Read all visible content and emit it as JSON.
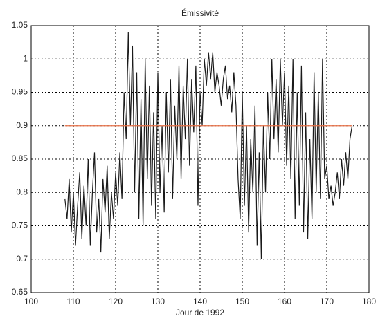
{
  "chart_data": {
    "type": "line",
    "title": "Émissivité",
    "x_label": "Jour de 1992",
    "xlim": [
      100,
      180
    ],
    "xticks": [
      100,
      110,
      120,
      130,
      140,
      150,
      160,
      170,
      180
    ],
    "ylim": [
      0.65,
      1.05
    ],
    "yticks": [
      0.65,
      0.7,
      0.75,
      0.8,
      0.85,
      0.9,
      0.95,
      1,
      1.05
    ],
    "grid": true,
    "series": [
      {
        "color": "#1a1a1a",
        "x": [
          108,
          108.5,
          109,
          109.5,
          110,
          110.5,
          111,
          111.5,
          112,
          112.5,
          113,
          113.5,
          114,
          114.5,
          115,
          115.5,
          116,
          116.5,
          117,
          117.5,
          118,
          118.5,
          119,
          119.5,
          120,
          120.5,
          121,
          121.5,
          122,
          122.5,
          123,
          123.5,
          124,
          124.5,
          125,
          125.5,
          126,
          126.5,
          127,
          127.5,
          128,
          128.5,
          129,
          129.5,
          130,
          130.5,
          131,
          131.5,
          132,
          132.5,
          133,
          133.5,
          134,
          134.5,
          135,
          135.5,
          136,
          136.5,
          137,
          137.5,
          138,
          138.5,
          139,
          139.5,
          140,
          140.5,
          141,
          141.5,
          142,
          142.5,
          143,
          143.5,
          144,
          144.5,
          145,
          145.5,
          146,
          146.5,
          147,
          147.5,
          148,
          148.5,
          149,
          149.5,
          150,
          150.5,
          151,
          151.5,
          152,
          152.5,
          153,
          153.5,
          154,
          154.5,
          155,
          155.5,
          156,
          156.5,
          157,
          157.5,
          158,
          158.5,
          159,
          159.5,
          160,
          160.5,
          161,
          161.5,
          162,
          162.5,
          163,
          163.5,
          164,
          164.5,
          165,
          165.5,
          166,
          166.5,
          167,
          167.5,
          168,
          168.5,
          169,
          169.5,
          170,
          170.5,
          171,
          171.5,
          172,
          172.5,
          173,
          173.5,
          174,
          174.5,
          175,
          175.5,
          176
        ],
        "values": [
          0.79,
          0.76,
          0.82,
          0.74,
          0.8,
          0.72,
          0.78,
          0.83,
          0.73,
          0.81,
          0.75,
          0.85,
          0.72,
          0.8,
          0.86,
          0.74,
          0.79,
          0.71,
          0.82,
          0.77,
          0.84,
          0.73,
          0.8,
          0.76,
          0.83,
          0.78,
          0.86,
          0.79,
          0.95,
          0.88,
          1.04,
          0.9,
          1.02,
          0.8,
          0.98,
          0.76,
          0.94,
          0.75,
          1.0,
          0.82,
          0.96,
          0.78,
          0.92,
          0.76,
          0.98,
          0.8,
          0.9,
          0.77,
          0.95,
          0.83,
          0.97,
          0.79,
          0.93,
          0.85,
          0.99,
          0.82,
          0.96,
          0.88,
          1.0,
          0.84,
          0.97,
          0.89,
          0.99,
          0.78,
          0.95,
          0.9,
          1.0,
          0.96,
          1.01,
          0.97,
          1.01,
          0.95,
          0.98,
          0.96,
          0.93,
          0.97,
          0.99,
          0.94,
          0.96,
          0.92,
          0.98,
          0.93,
          0.82,
          0.76,
          0.95,
          0.78,
          0.9,
          0.74,
          0.88,
          0.8,
          0.93,
          0.72,
          0.86,
          0.7,
          0.9,
          0.8,
          0.95,
          0.85,
          1.0,
          0.88,
          0.97,
          0.86,
          1.0,
          0.9,
          0.98,
          0.84,
          0.96,
          0.82,
          1.0,
          0.76,
          0.95,
          0.78,
          0.99,
          0.74,
          0.92,
          0.73,
          0.88,
          0.76,
          0.98,
          0.8,
          0.95,
          0.79,
          1.0,
          0.82,
          0.84,
          0.79,
          0.81,
          0.78,
          0.8,
          0.83,
          0.79,
          0.85,
          0.81,
          0.86,
          0.82,
          0.88,
          0.9
        ]
      },
      {
        "color": "#e8734a",
        "x": [
          108,
          176
        ],
        "values": [
          0.9,
          0.9
        ]
      }
    ]
  }
}
